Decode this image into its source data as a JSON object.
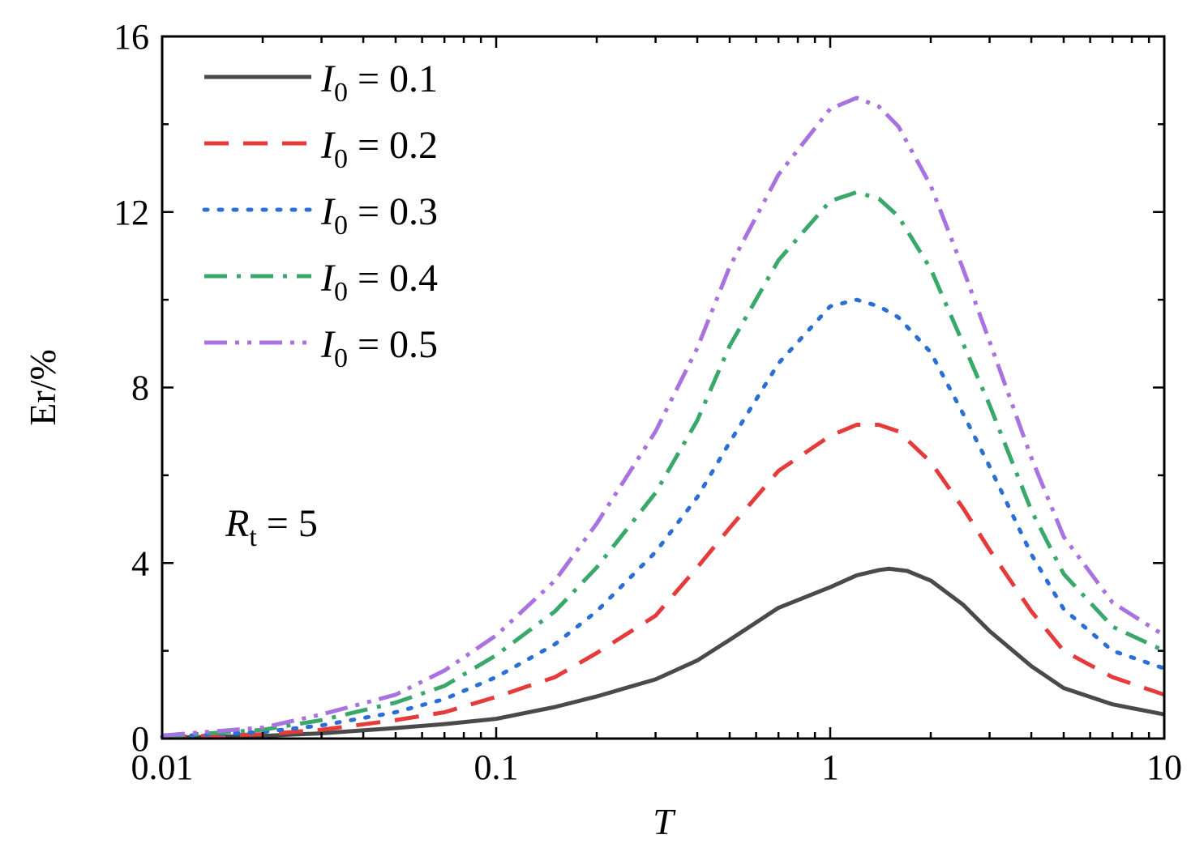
{
  "chart_data": {
    "type": "line",
    "title": "",
    "xlabel": "T",
    "ylabel": "Er/%",
    "xscale": "log",
    "xlim": [
      0.01,
      10
    ],
    "ylim": [
      0,
      16
    ],
    "xticks": [
      0.01,
      0.1,
      1,
      10
    ],
    "xtick_labels": [
      "0.01",
      "0.1",
      "1",
      "10"
    ],
    "yticks": [
      0,
      4,
      8,
      12,
      16
    ],
    "ytick_labels": [
      "0",
      "4",
      "8",
      "12",
      "16"
    ],
    "grid": false,
    "legend_position": "top-left",
    "annotation": {
      "symbol": "R",
      "subscript": "t",
      "text": " = 5"
    },
    "series": [
      {
        "name": "I0 = 0.1",
        "legend": {
          "symbol": "I",
          "subscript": "0",
          "text": " = 0.1"
        },
        "color": "#4a4a4a",
        "style": "solid",
        "x": [
          0.01,
          0.02,
          0.03,
          0.05,
          0.07,
          0.1,
          0.15,
          0.2,
          0.3,
          0.4,
          0.5,
          0.7,
          1.0,
          1.2,
          1.4,
          1.5,
          1.7,
          2.0,
          2.5,
          3.0,
          4.0,
          5.0,
          7.0,
          10.0
        ],
        "values": [
          0.02,
          0.06,
          0.12,
          0.24,
          0.33,
          0.45,
          0.72,
          0.96,
          1.35,
          1.78,
          2.25,
          2.98,
          3.45,
          3.72,
          3.84,
          3.87,
          3.82,
          3.6,
          3.05,
          2.45,
          1.65,
          1.15,
          0.78,
          0.55
        ]
      },
      {
        "name": "I0 = 0.2",
        "legend": {
          "symbol": "I",
          "subscript": "0",
          "text": " = 0.2"
        },
        "color": "#e63b3b",
        "style": "dashed",
        "x": [
          0.01,
          0.02,
          0.03,
          0.05,
          0.07,
          0.1,
          0.15,
          0.2,
          0.3,
          0.4,
          0.5,
          0.7,
          1.0,
          1.2,
          1.4,
          1.6,
          2.0,
          2.5,
          3.0,
          4.0,
          5.0,
          7.0,
          10.0
        ],
        "values": [
          0.03,
          0.1,
          0.2,
          0.42,
          0.6,
          0.95,
          1.4,
          1.95,
          2.8,
          3.9,
          4.8,
          6.1,
          6.9,
          7.15,
          7.15,
          7.0,
          6.3,
          5.25,
          4.3,
          2.9,
          2.0,
          1.4,
          1.0
        ]
      },
      {
        "name": "I0 = 0.3",
        "legend": {
          "symbol": "I",
          "subscript": "0",
          "text": " = 0.3"
        },
        "color": "#2b6fd6",
        "style": "dotted",
        "x": [
          0.01,
          0.02,
          0.03,
          0.05,
          0.07,
          0.1,
          0.15,
          0.2,
          0.3,
          0.4,
          0.5,
          0.7,
          1.0,
          1.2,
          1.4,
          1.6,
          2.0,
          2.5,
          3.0,
          4.0,
          5.0,
          7.0,
          10.0
        ],
        "values": [
          0.04,
          0.15,
          0.3,
          0.6,
          0.9,
          1.4,
          2.15,
          2.9,
          4.25,
          5.5,
          6.75,
          8.55,
          9.85,
          10.0,
          9.85,
          9.6,
          8.8,
          7.4,
          6.2,
          4.2,
          2.95,
          2.0,
          1.6
        ]
      },
      {
        "name": "I0 = 0.4",
        "legend": {
          "symbol": "I",
          "subscript": "0",
          "text": " = 0.4"
        },
        "color": "#3aa86b",
        "style": "dashdot",
        "x": [
          0.01,
          0.02,
          0.03,
          0.05,
          0.07,
          0.1,
          0.15,
          0.2,
          0.3,
          0.4,
          0.5,
          0.7,
          1.0,
          1.2,
          1.4,
          1.6,
          2.0,
          2.5,
          3.0,
          4.0,
          5.0,
          7.0,
          10.0
        ],
        "values": [
          0.05,
          0.2,
          0.42,
          0.82,
          1.2,
          1.9,
          2.9,
          3.9,
          5.6,
          7.25,
          8.95,
          10.9,
          12.25,
          12.45,
          12.3,
          11.9,
          10.7,
          9.0,
          7.6,
          5.2,
          3.75,
          2.55,
          2.0
        ]
      },
      {
        "name": "I0 = 0.5",
        "legend": {
          "symbol": "I",
          "subscript": "0",
          "text": " = 0.5"
        },
        "color": "#a873e0",
        "style": "dashdotdot",
        "x": [
          0.01,
          0.02,
          0.03,
          0.05,
          0.07,
          0.1,
          0.15,
          0.2,
          0.3,
          0.4,
          0.5,
          0.7,
          1.0,
          1.2,
          1.4,
          1.6,
          2.0,
          2.5,
          3.0,
          4.0,
          5.0,
          7.0,
          10.0
        ],
        "values": [
          0.07,
          0.25,
          0.55,
          1.0,
          1.55,
          2.35,
          3.6,
          4.9,
          7.0,
          8.9,
          10.75,
          12.85,
          14.35,
          14.6,
          14.4,
          13.95,
          12.6,
          10.7,
          9.05,
          6.4,
          4.6,
          3.1,
          2.35
        ]
      }
    ]
  }
}
